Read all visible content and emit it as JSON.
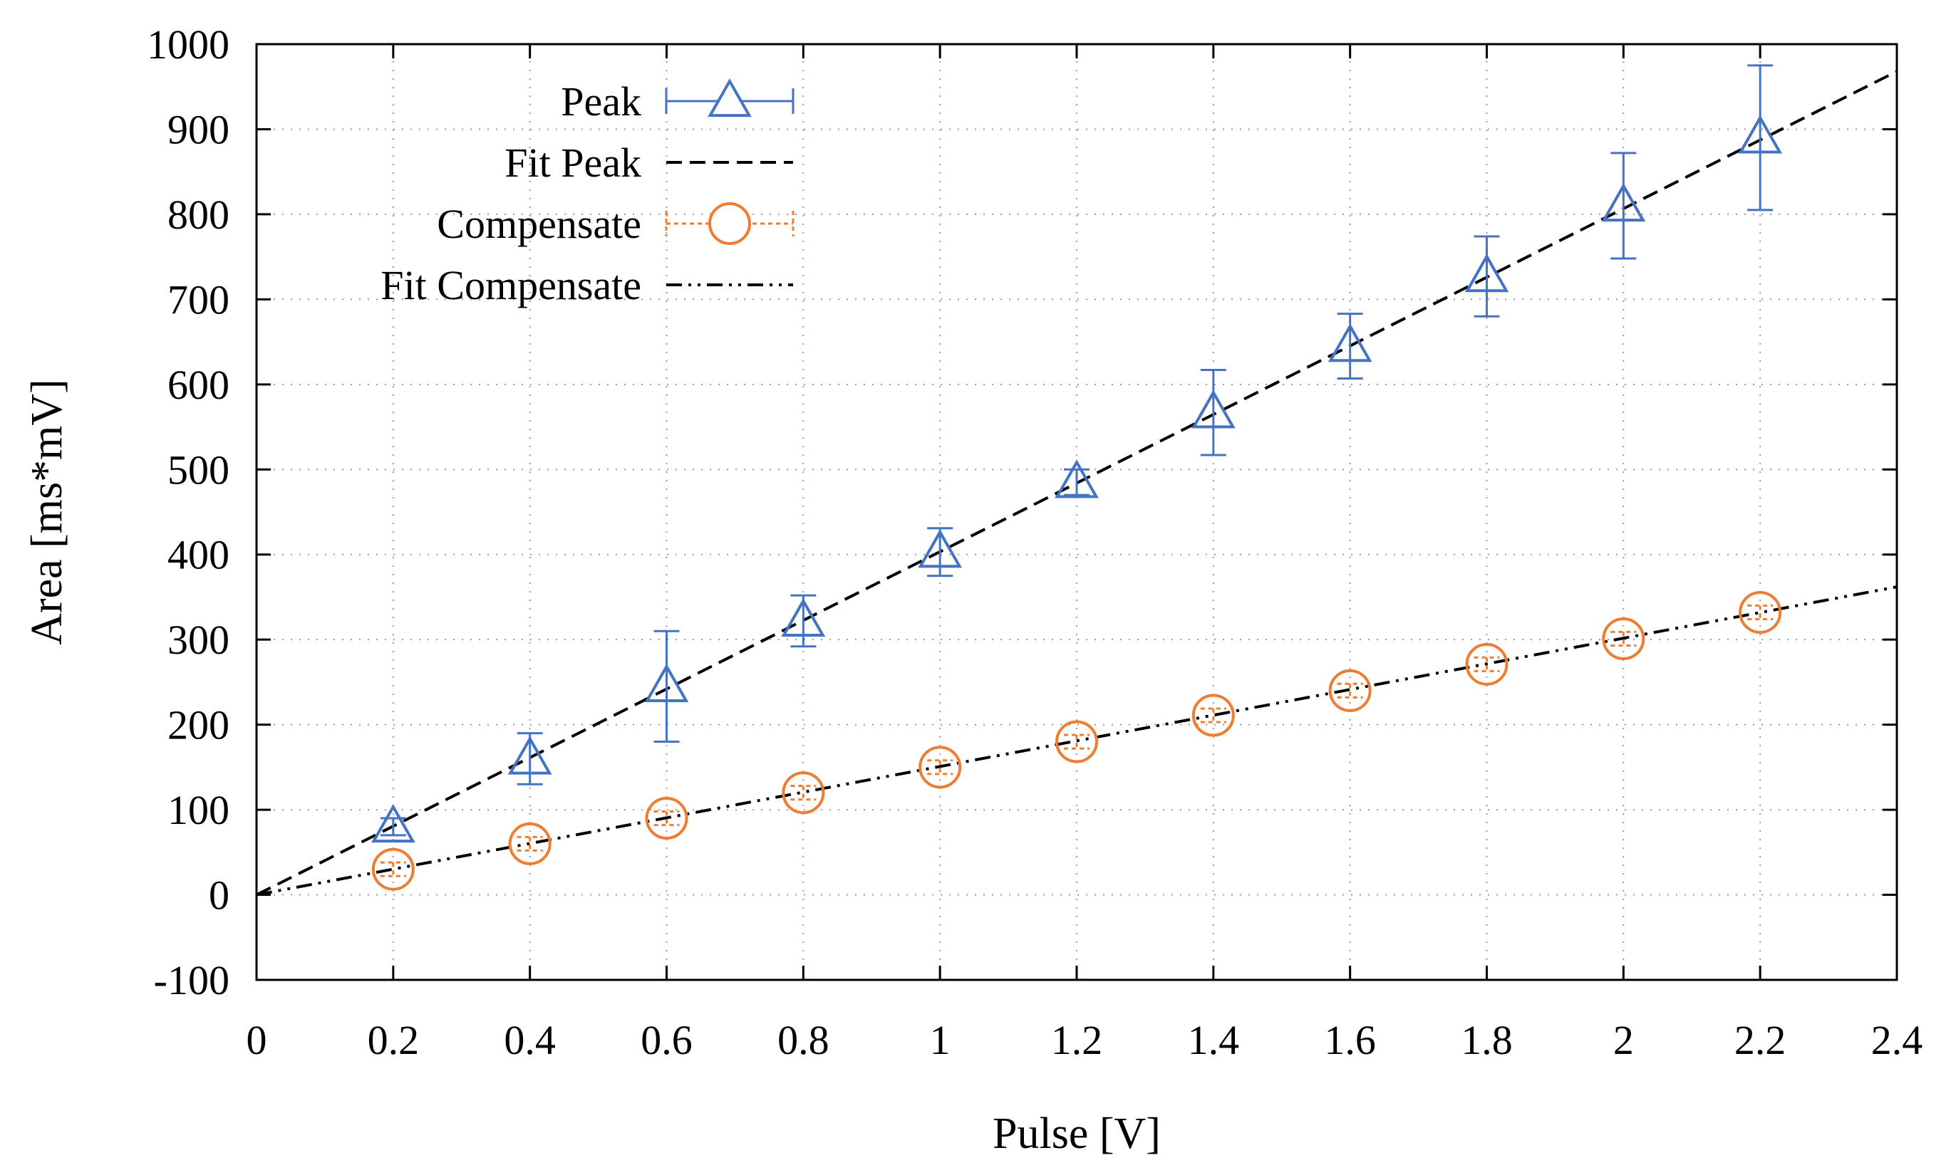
{
  "chart_data": {
    "type": "scatter",
    "xlabel": "Pulse [V]",
    "ylabel": "Area [ms*mV]",
    "xlim": [
      0,
      2.4
    ],
    "ylim": [
      -100,
      1000
    ],
    "xticks": [
      0,
      0.2,
      0.4,
      0.6,
      0.8,
      1,
      1.2,
      1.4,
      1.6,
      1.8,
      2,
      2.2,
      2.4
    ],
    "xtick_labels": [
      "0",
      "0.2",
      "0.4",
      "0.6",
      "0.8",
      "1",
      "1.2",
      "1.4",
      "1.6",
      "1.8",
      "2",
      "2.2",
      "2.4"
    ],
    "yticks": [
      -100,
      0,
      100,
      200,
      300,
      400,
      500,
      600,
      700,
      800,
      900,
      1000
    ],
    "ytick_labels": [
      "-100",
      "0",
      "100",
      "200",
      "300",
      "400",
      "500",
      "600",
      "700",
      "800",
      "900",
      "1000"
    ],
    "grid": true,
    "legend_position": "top-left",
    "series": [
      {
        "name": "Peak",
        "kind": "points-errorbars",
        "marker": "triangle",
        "color": "#4472c4",
        "x": [
          0.2,
          0.4,
          0.6,
          0.8,
          1.0,
          1.2,
          1.4,
          1.6,
          1.8,
          2.0,
          2.2
        ],
        "y": [
          80,
          160,
          245,
          322,
          403,
          485,
          567,
          645,
          727,
          810,
          890
        ],
        "yerr": [
          10,
          30,
          65,
          30,
          28,
          15,
          50,
          38,
          47,
          62,
          85
        ]
      },
      {
        "name": "Fit Peak",
        "kind": "line",
        "dash": "dashed",
        "color": "#000000",
        "x": [
          0,
          2.4
        ],
        "y": [
          0,
          968
        ]
      },
      {
        "name": "Compensate",
        "kind": "points-errorbars",
        "marker": "circle",
        "color": "#ed7d31",
        "x": [
          0.2,
          0.4,
          0.6,
          0.8,
          1.0,
          1.2,
          1.4,
          1.6,
          1.8,
          2.0,
          2.2
        ],
        "y": [
          30,
          60,
          90,
          120,
          150,
          180,
          211,
          240,
          271,
          301,
          332
        ],
        "yerr": [
          8,
          8,
          8,
          8,
          8,
          8,
          8,
          8,
          8,
          8,
          8
        ]
      },
      {
        "name": "Fit Compensate",
        "kind": "line",
        "dash": "dash-dot-dot",
        "color": "#000000",
        "x": [
          0,
          2.4
        ],
        "y": [
          0,
          362
        ]
      }
    ]
  }
}
